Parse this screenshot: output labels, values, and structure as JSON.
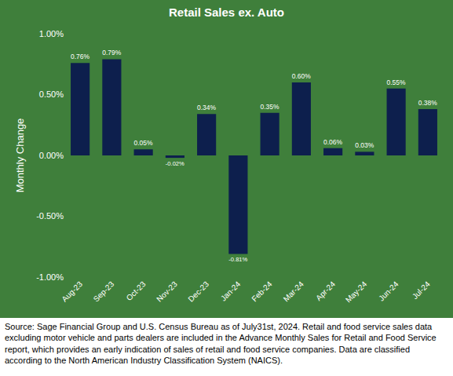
{
  "chart_data": {
    "type": "bar",
    "title": "Retail Sales ex. Auto",
    "y_label": "Monthly Change",
    "categories": [
      "Aug-23",
      "Sep-23",
      "Oct-23",
      "Nov-23",
      "Dec-23",
      "Jan-24",
      "Feb-24",
      "Mar-24",
      "Apr-24",
      "May-24",
      "Jun-24",
      "Jul-24"
    ],
    "values": [
      0.76,
      0.79,
      0.05,
      -0.02,
      0.34,
      -0.81,
      0.35,
      0.6,
      0.06,
      0.03,
      0.55,
      0.38
    ],
    "value_labels": [
      "0.76%",
      "0.79%",
      "0.05%",
      "-0.02%",
      "0.34%",
      "-0.81%",
      "0.35%",
      "0.60%",
      "0.06%",
      "0.03%",
      "0.55%",
      "0.38%"
    ],
    "color": "#0d1f4d",
    "ylim": [
      -1,
      1
    ],
    "yticks": [
      {
        "value": -1,
        "label": "-1.00%"
      },
      {
        "value": -0.5,
        "label": "-0.50%"
      },
      {
        "value": 0,
        "label": "0.00%"
      },
      {
        "value": 0.5,
        "label": "0.50%"
      },
      {
        "value": 1,
        "label": "1.00%"
      }
    ],
    "grid": false,
    "data_labels": true,
    "annotations": [
      "Source: Sage Financial Group and U.S. Census Bureau as of July31st, 2024. Retail and food service sales data excluding motor vehicle and parts dealers are included in the Advance Monthly Sales for Retail and Food Service report, which provides an early indication of sales of retail and food service companies. Data are classified according to the North American Industry Classification System (NAICS)."
    ]
  }
}
